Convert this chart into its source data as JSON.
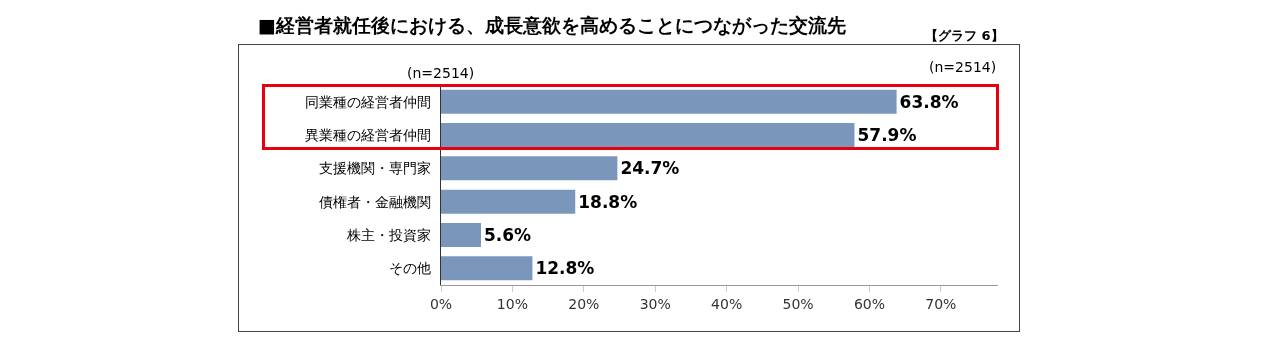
{
  "chart_data": {
    "type": "bar",
    "orientation": "horizontal",
    "title": "■経営者就任後における、成長意欲を高めることにつながった交流先",
    "annotations": [
      "【グラフ 6】",
      "(n=2514)",
      "(n=2514)"
    ],
    "categories": [
      "同業種の経営者仲間",
      "異業種の経営者仲間",
      "支援機関・専門家",
      "債権者・金融機関",
      "株主・投資家",
      "その他"
    ],
    "values": [
      63.8,
      57.9,
      24.7,
      18.8,
      5.6,
      12.8
    ],
    "value_labels": [
      "63.8%",
      "57.9%",
      "24.7%",
      "18.8%",
      "5.6%",
      "12.8%"
    ],
    "color": "#7a97bb",
    "xlim": [
      0,
      78
    ],
    "xticks": [
      {
        "value": 0,
        "label": "0%"
      },
      {
        "value": 10,
        "label": "10%"
      },
      {
        "value": 20,
        "label": "20%"
      },
      {
        "value": 30,
        "label": "30%"
      },
      {
        "value": 40,
        "label": "40%"
      },
      {
        "value": 50,
        "label": "50%"
      },
      {
        "value": 60,
        "label": "60%"
      },
      {
        "value": 70,
        "label": "70%"
      }
    ],
    "grid": false,
    "legend": false
  }
}
